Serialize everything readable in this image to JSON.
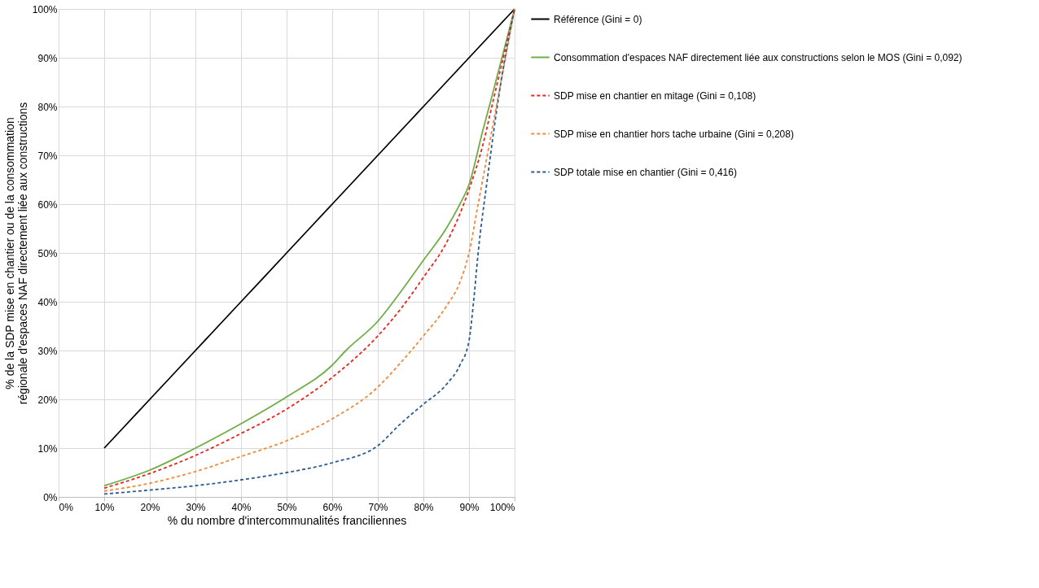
{
  "chart_data": {
    "type": "line",
    "xlabel": "% du nombre d'intercommunalités franciliennes",
    "ylabel": "% de la SDP mise en chantier ou de la consommation régionale d'espaces NAF directement liée aux constructions",
    "xlim": [
      0,
      100
    ],
    "ylim": [
      0,
      100
    ],
    "xticks": [
      {
        "value": 0,
        "label": "0%"
      },
      {
        "value": 10,
        "label": "10%"
      },
      {
        "value": 20,
        "label": "20%"
      },
      {
        "value": 30,
        "label": "30%"
      },
      {
        "value": 40,
        "label": "40%"
      },
      {
        "value": 50,
        "label": "50%"
      },
      {
        "value": 60,
        "label": "60%"
      },
      {
        "value": 70,
        "label": "70%"
      },
      {
        "value": 80,
        "label": "80%"
      },
      {
        "value": 90,
        "label": "90%"
      },
      {
        "value": 100,
        "label": "100%"
      }
    ],
    "yticks": [
      {
        "value": 0,
        "label": "0%"
      },
      {
        "value": 10,
        "label": "10%"
      },
      {
        "value": 20,
        "label": "20%"
      },
      {
        "value": 30,
        "label": "30%"
      },
      {
        "value": 40,
        "label": "40%"
      },
      {
        "value": 50,
        "label": "50%"
      },
      {
        "value": 60,
        "label": "60%"
      },
      {
        "value": 70,
        "label": "70%"
      },
      {
        "value": 80,
        "label": "80%"
      },
      {
        "value": 90,
        "label": "90%"
      },
      {
        "value": 100,
        "label": "100%"
      }
    ],
    "grid": true,
    "legend": "right",
    "marker": "none",
    "series": [
      {
        "name": "Référence (Gini = 0)",
        "color": "#000000",
        "line_style": "solid",
        "x": [
          10,
          20,
          30,
          40,
          50,
          60,
          70,
          80,
          90,
          100
        ],
        "values": [
          10,
          20,
          30,
          40,
          50,
          60,
          70,
          80,
          90,
          100
        ]
      },
      {
        "name": "Consommation d'espaces NAF directement liée aux constructions  selon le MOS (Gini = 0,092)",
        "color": "#70ad47",
        "line_style": "solid",
        "x": [
          10,
          20,
          30,
          40,
          50,
          60,
          63,
          70,
          75,
          80,
          85,
          88,
          90,
          93,
          95,
          100
        ],
        "values": [
          2.3,
          5.5,
          10,
          15,
          20.5,
          27,
          30,
          36,
          42,
          48.5,
          55,
          60,
          64,
          75,
          82,
          100
        ]
      },
      {
        "name": "SDP mise en chantier en mitage (Gini = 0,108)",
        "color": "#e8251f",
        "line_style": "dashed",
        "x": [
          10,
          20,
          30,
          40,
          50,
          60,
          70,
          75,
          80,
          85,
          88,
          90,
          93,
          95,
          100
        ],
        "values": [
          1.8,
          4.8,
          8.5,
          13,
          18,
          24.5,
          33,
          38.5,
          45,
          52,
          58,
          63,
          72,
          80,
          100
        ]
      },
      {
        "name": "SDP mise en chantier hors tache urbaine (Gini = 0,208)",
        "color": "#f08a3c",
        "line_style": "dashed",
        "x": [
          10,
          20,
          30,
          40,
          50,
          60,
          70,
          75,
          80,
          85,
          88,
          90,
          92,
          95,
          100
        ],
        "values": [
          1.2,
          2.8,
          5.2,
          8.3,
          11.5,
          16,
          22.5,
          27.5,
          33,
          39,
          44,
          50,
          60,
          75,
          100
        ]
      },
      {
        "name": "SDP totale mise en chantier (Gini = 0,416)",
        "color": "#2e5c8f",
        "line_style": "dashed",
        "x": [
          10,
          20,
          30,
          40,
          50,
          60,
          70,
          75,
          80,
          85,
          88,
          90,
          91,
          92,
          94,
          97,
          100
        ],
        "values": [
          0.6,
          1.4,
          2.3,
          3.5,
          5,
          7,
          10.5,
          15,
          19,
          23,
          27,
          32,
          40,
          50,
          65,
          85,
          100
        ]
      }
    ]
  }
}
